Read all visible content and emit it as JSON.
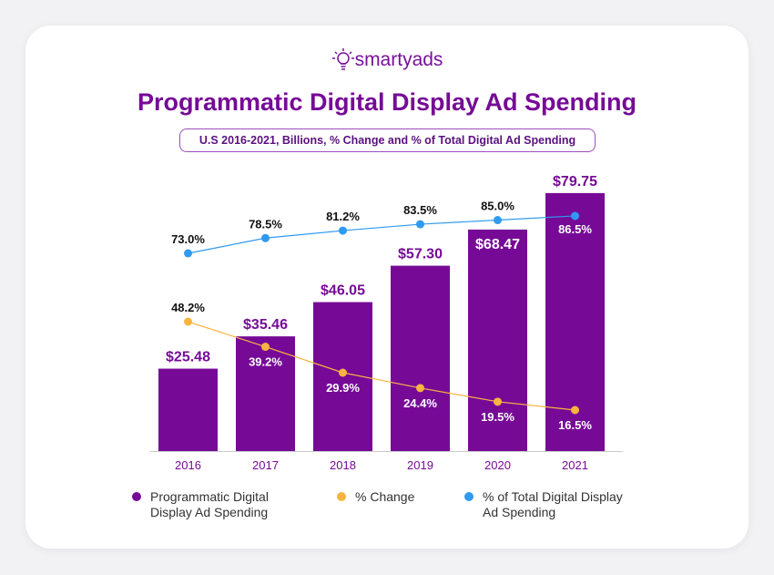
{
  "logo": {
    "text": "smartyads"
  },
  "title": "Programmatic Digital Display Ad Spending",
  "subtitle": "U.S 2016-2021, Billions, % Change and % of Total Digital Ad Spending",
  "chart_data": {
    "type": "bar",
    "categories": [
      "2016",
      "2017",
      "2018",
      "2019",
      "2020",
      "2021"
    ],
    "series": [
      {
        "name": "Programmatic Digital Display Ad Spending",
        "type": "bar",
        "values": [
          25.48,
          35.46,
          46.05,
          57.3,
          68.47,
          79.75
        ],
        "labels": [
          "$25.48",
          "$35.46",
          "$46.05",
          "$57.30",
          "$68.47",
          "$79.75"
        ],
        "color": "#760a97"
      },
      {
        "name": "% Change",
        "type": "line",
        "values": [
          48.2,
          39.2,
          29.9,
          24.4,
          19.5,
          16.5
        ],
        "labels": [
          "48.2%",
          "39.2%",
          "29.9%",
          "24.4%",
          "19.5%",
          "16.5%"
        ],
        "color": "#f8b440"
      },
      {
        "name": "% of Total Digital Display Ad Spending",
        "type": "line",
        "values": [
          73.0,
          78.5,
          81.2,
          83.5,
          85.0,
          86.5
        ],
        "labels": [
          "73.0%",
          "78.5%",
          "81.2%",
          "83.5%",
          "85.0%",
          "86.5%"
        ],
        "color": "#2f9af0"
      }
    ],
    "legend": "bottom",
    "grid": false
  },
  "legend": {
    "items": [
      {
        "line1": "Programmatic Digital",
        "line2": "Display Ad Spending",
        "color": "#760a97"
      },
      {
        "line1": "% Change",
        "line2": "",
        "color": "#f8b440"
      },
      {
        "line1": "% of Total Digital Display",
        "line2": "Ad Spending",
        "color": "#2f9af0"
      }
    ]
  }
}
